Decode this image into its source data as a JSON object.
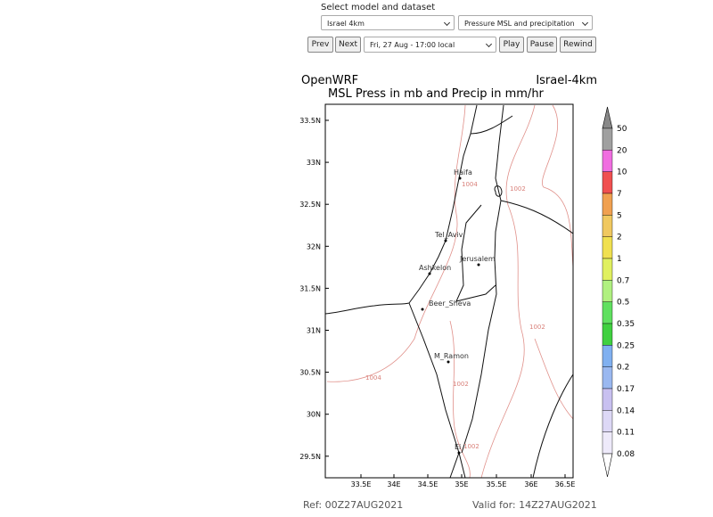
{
  "header": {
    "label": "Select model and dataset"
  },
  "controls": {
    "model": "Israel 4km",
    "dataset": "Pressure MSL and precipitation",
    "time": "Fri, 27 Aug - 17:00 local",
    "buttons": [
      "Prev",
      "Next",
      "Play",
      "Pause",
      "Rewind"
    ]
  },
  "map": {
    "source": "OpenWRF",
    "domain": "Israel-4km",
    "title": "MSL Press in mb and Precip in mm/hr",
    "lat_labels": [
      "33.5N",
      "33N",
      "32.5N",
      "32N",
      "31.5N",
      "31N",
      "30.5N",
      "30N",
      "29.5N"
    ],
    "lon_labels": [
      "33.5E",
      "34E",
      "34.5E",
      "35E",
      "35.5E",
      "36E",
      "36.5E"
    ],
    "cities": [
      "Haifa",
      "Tel_Aviv",
      "Jerusalem",
      "Ashkelon",
      "Beer_Sheva",
      "M_Ramon",
      "Ei"
    ],
    "contour_labels": [
      "1004",
      "1002",
      "1002",
      "1004",
      "1002",
      "1002"
    ],
    "colorbar_labels": [
      "50",
      "20",
      "10",
      "7",
      "5",
      "2",
      "1",
      "0.7",
      "0.5",
      "0.35",
      "0.25",
      "0.2",
      "0.17",
      "0.14",
      "0.11",
      "0.08"
    ],
    "ref": "Ref: 00Z27AUG2021",
    "valid": "Valid for: 14Z27AUG2021"
  }
}
